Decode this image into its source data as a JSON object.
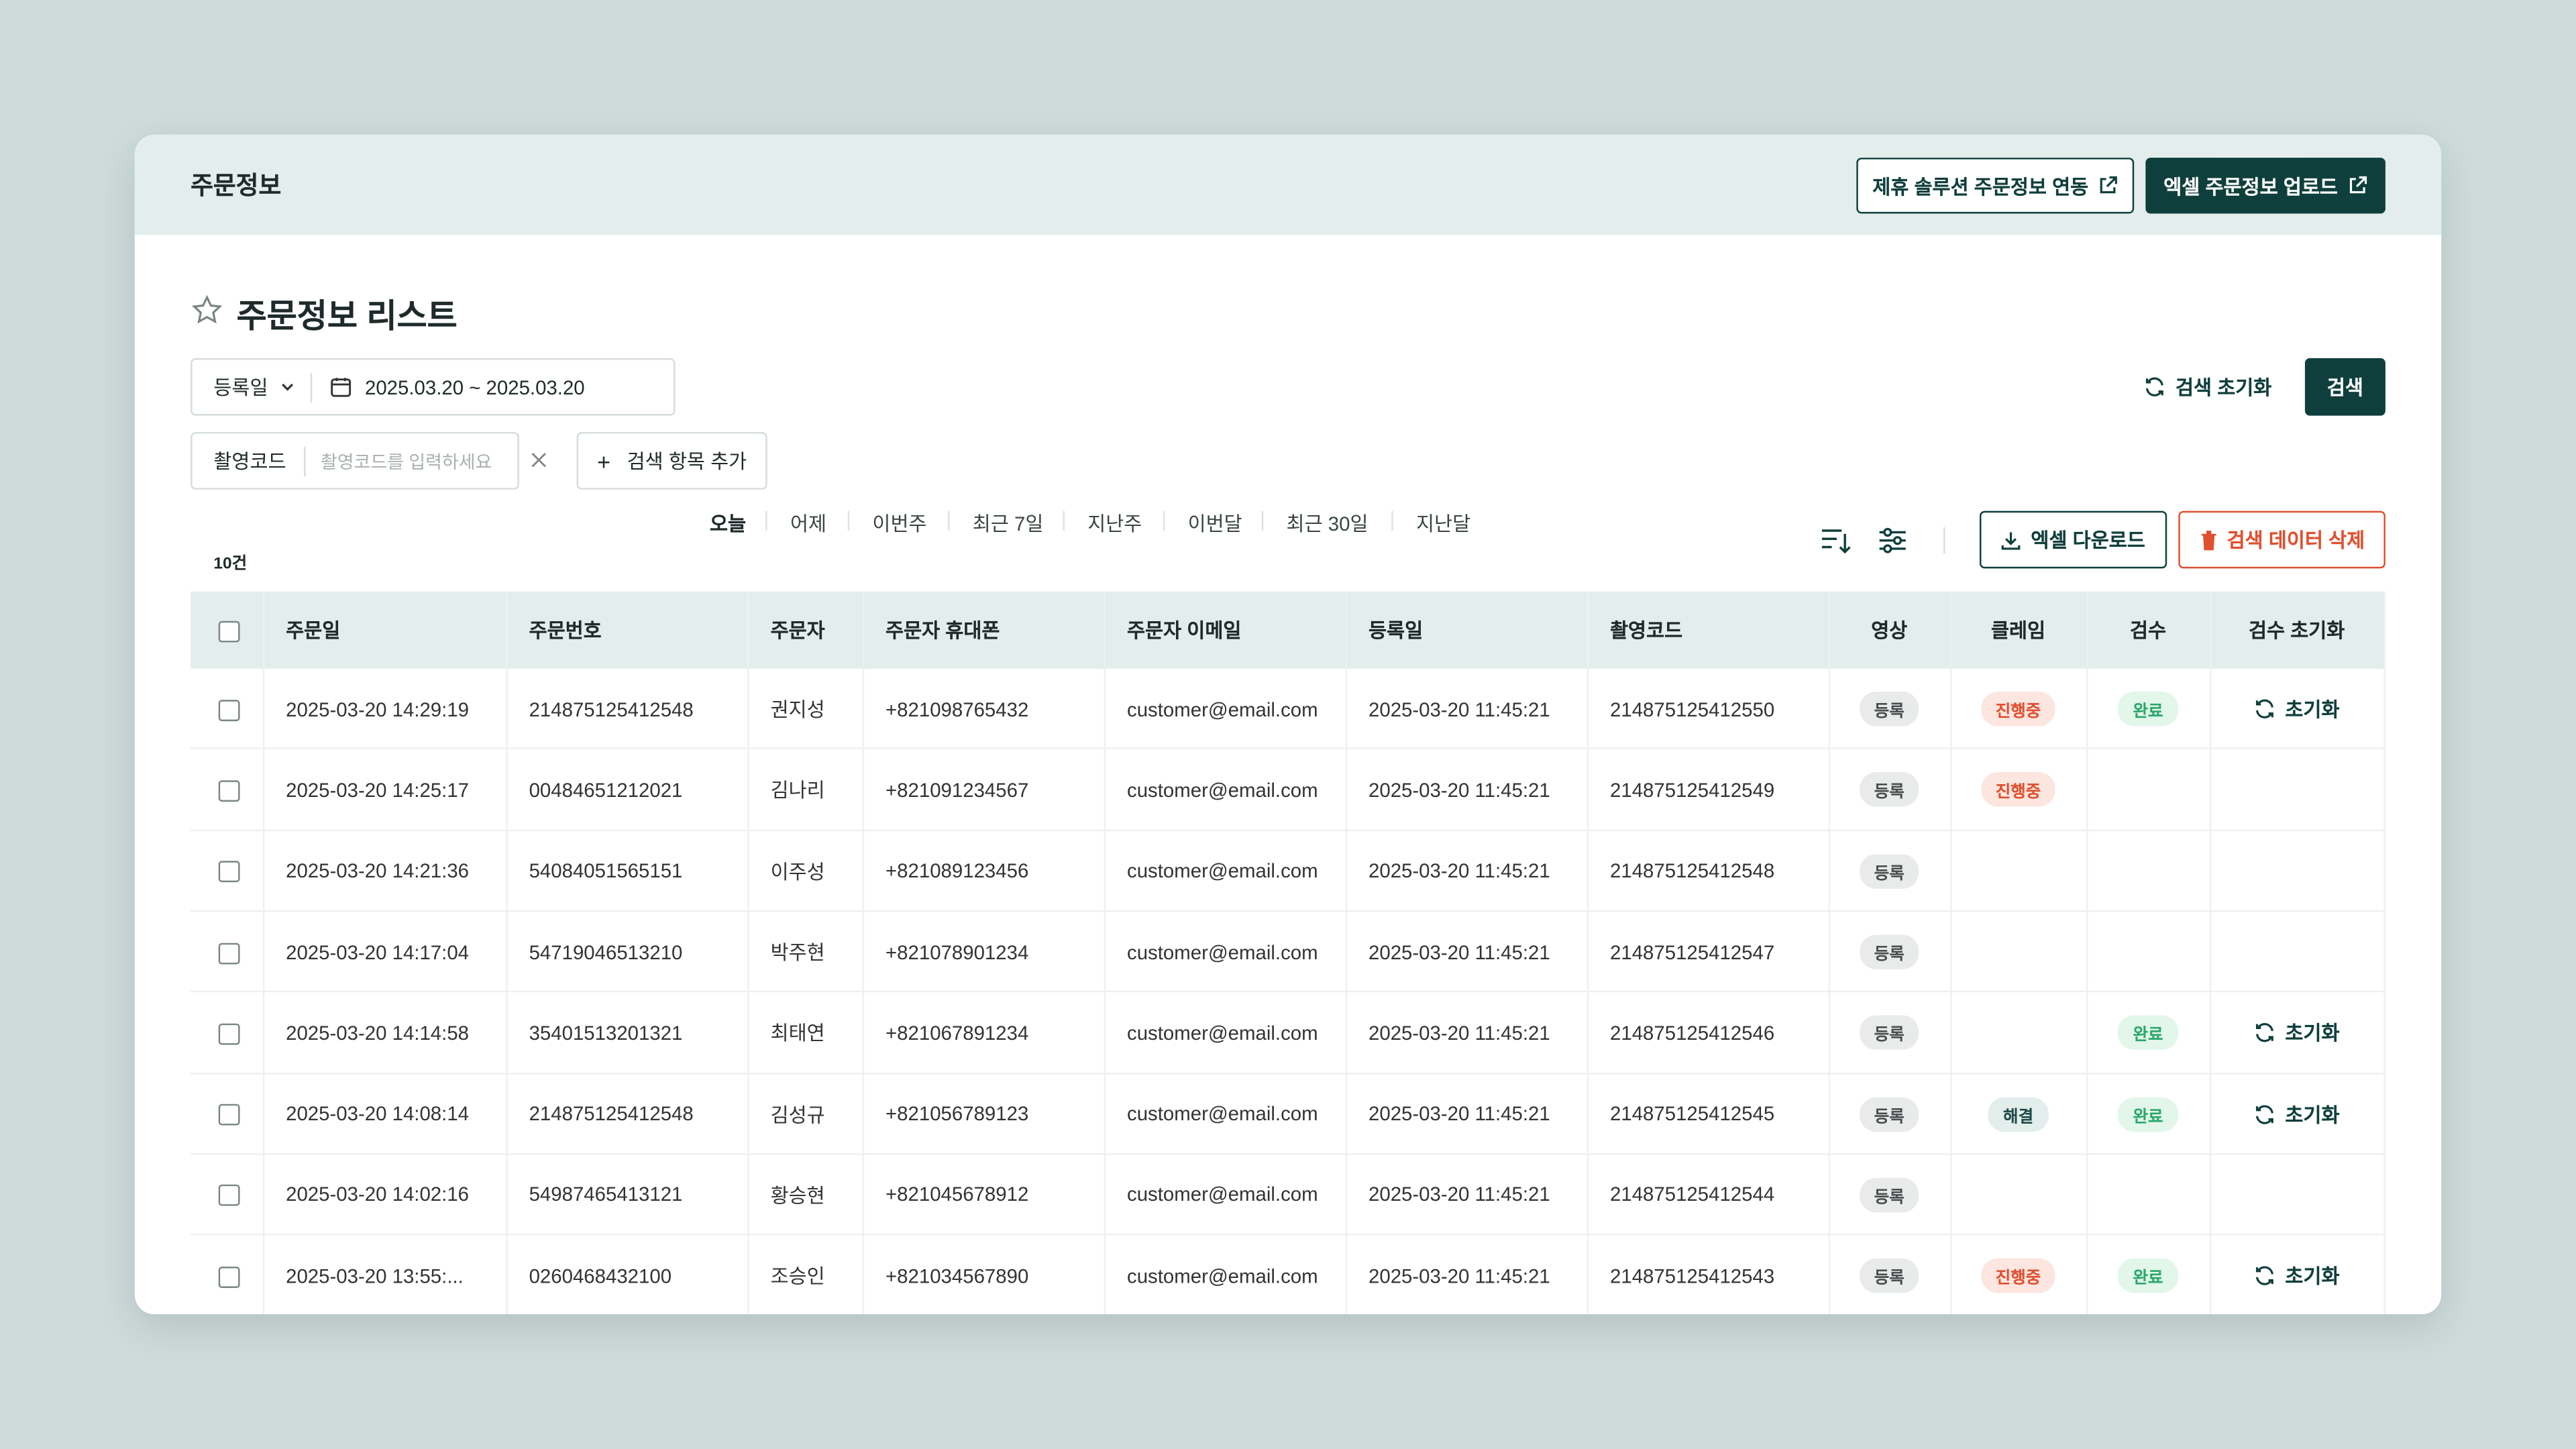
{
  "header": {
    "title": "주문정보",
    "buttons": [
      "제휴 솔루션 주문정보 연동",
      "엑셀 주문정보 업로드"
    ]
  },
  "list_title": "주문정보 리스트",
  "filters": {
    "date_type": "등록일",
    "date_range": "2025.03.20 ~ 2025.03.20",
    "presets": [
      "오늘",
      "어제",
      "이번주",
      "최근 7일",
      "지난주",
      "이번달",
      "최근 30일",
      "지난달"
    ],
    "reset": "검색 초기화",
    "search": "검색",
    "code_label": "촬영코드",
    "code_placeholder": "촬영코드를 입력하세요",
    "add_field": "검색 항목 추가"
  },
  "toolbar": {
    "count": "10건",
    "excel_download": "엑셀 다운로드",
    "delete": "검색 데이터 삭제"
  },
  "table": {
    "columns": [
      "주문일",
      "주문번호",
      "주문자",
      "주문자 휴대폰",
      "주문자 이메일",
      "등록일",
      "촬영코드",
      "영상",
      "클레임",
      "검수",
      "검수 초기화"
    ],
    "rows": [
      [
        "2025-03-20 14:29:19",
        "214875125412548",
        "권지성",
        "+821098765432",
        "customer@email.com",
        "2025-03-20 11:45:21",
        "214875125412550",
        {
          "label": "등록",
          "color": "#4a4f4f",
          "bg": "#e9ebeb"
        },
        {
          "label": "진행중",
          "color": "#e0502f",
          "bg": "#fde6e0"
        },
        {
          "label": "완료",
          "color": "#2aa86a",
          "bg": "#e2f6ea"
        },
        "초기화"
      ],
      [
        "2025-03-20 14:25:17",
        "00484651212021",
        "김나리",
        "+821091234567",
        "customer@email.com",
        "2025-03-20 11:45:21",
        "214875125412549",
        {
          "label": "등록",
          "color": "#4a4f4f",
          "bg": "#e9ebeb"
        },
        {
          "label": "진행중",
          "color": "#e0502f",
          "bg": "#fde6e0"
        },
        null,
        null
      ],
      [
        "2025-03-20 14:21:36",
        "54084051565151",
        "이주성",
        "+821089123456",
        "customer@email.com",
        "2025-03-20 11:45:21",
        "214875125412548",
        {
          "label": "등록",
          "color": "#4a4f4f",
          "bg": "#e9ebeb"
        },
        null,
        null,
        null
      ],
      [
        "2025-03-20 14:17:04",
        "54719046513210",
        "박주현",
        "+821078901234",
        "customer@email.com",
        "2025-03-20 11:45:21",
        "214875125412547",
        {
          "label": "등록",
          "color": "#4a4f4f",
          "bg": "#e9ebeb"
        },
        null,
        null,
        null
      ],
      [
        "2025-03-20 14:14:58",
        "35401513201321",
        "최태연",
        "+821067891234",
        "customer@email.com",
        "2025-03-20 11:45:21",
        "214875125412546",
        {
          "label": "등록",
          "color": "#4a4f4f",
          "bg": "#e9ebeb"
        },
        null,
        {
          "label": "완료",
          "color": "#2aa86a",
          "bg": "#e2f6ea"
        },
        "초기화"
      ],
      [
        "2025-03-20 14:08:14",
        "214875125412548",
        "김성규",
        "+821056789123",
        "customer@email.com",
        "2025-03-20 11:45:21",
        "214875125412545",
        {
          "label": "등록",
          "color": "#4a4f4f",
          "bg": "#e9ebeb"
        },
        {
          "label": "해결",
          "color": "#1e4b47",
          "bg": "#e3eeec"
        },
        {
          "label": "완료",
          "color": "#2aa86a",
          "bg": "#e2f6ea"
        },
        "초기화"
      ],
      [
        "2025-03-20 14:02:16",
        "54987465413121",
        "황승현",
        "+821045678912",
        "customer@email.com",
        "2025-03-20 11:45:21",
        "214875125412544",
        {
          "label": "등록",
          "color": "#4a4f4f",
          "bg": "#e9ebeb"
        },
        null,
        null,
        null
      ],
      [
        "2025-03-20 13:55:...",
        "0260468432100",
        "조승인",
        "+821034567890",
        "customer@email.com",
        "2025-03-20 11:45:21",
        "214875125412543",
        {
          "label": "등록",
          "color": "#4a4f4f",
          "bg": "#e9ebeb"
        },
        {
          "label": "진행중",
          "color": "#e0502f",
          "bg": "#fde6e0"
        },
        {
          "label": "완료",
          "color": "#2aa86a",
          "bg": "#e2f6ea"
        },
        "초기화"
      ]
    ]
  }
}
